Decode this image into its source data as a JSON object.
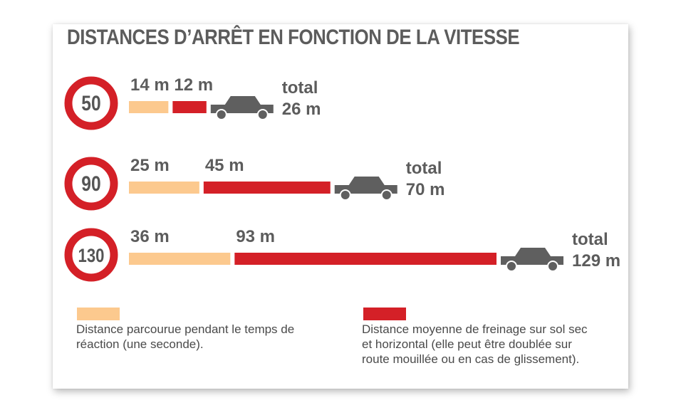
{
  "chart_data": {
    "type": "bar",
    "title": "DISTANCES D’ARRÊT EN FONCTION DE LA VITESSE",
    "categories": [
      "50",
      "90",
      "130"
    ],
    "series": [
      {
        "name": "Distance parcourue pendant le temps de réaction (une seconde).",
        "values": [
          14,
          25,
          36
        ],
        "labels": [
          "14 m",
          "25 m",
          "36 m"
        ]
      },
      {
        "name": "Distance moyenne de freinage sur sol sec et horizontal (elle peut être doublée sur route mouillée ou en cas de glissement).",
        "values": [
          12,
          45,
          93
        ],
        "labels": [
          "12 m",
          "45 m",
          "93 m"
        ]
      }
    ],
    "totals": [
      {
        "label": "total",
        "value": "26 m"
      },
      {
        "label": "total",
        "value": "70 m"
      },
      {
        "label": "total",
        "value": "129 m"
      }
    ],
    "orientation": "horizontal",
    "stacked": true
  },
  "legend": {
    "reaction_text": "Distance parcourue pendant le temps de réaction (une seconde).",
    "braking_text": "Distance moyenne de freinage sur sol sec et horizontal (elle peut être doublée sur route mouillée ou en cas de glissement)."
  },
  "colors": {
    "reaction": "#fcc98e",
    "braking": "#d42027",
    "sign_ring": "#d42027",
    "car": "#5f5f5f",
    "text": "#5c5c5c"
  }
}
